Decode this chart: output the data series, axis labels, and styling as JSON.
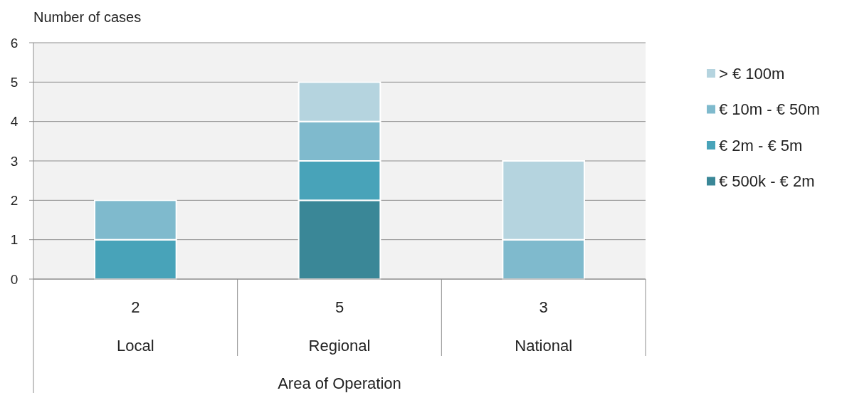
{
  "chart_data": {
    "type": "bar",
    "stacked": true,
    "ylabel": "Number of cases",
    "xlabel": "Area of Operation",
    "categories": [
      "Local",
      "Regional",
      "National"
    ],
    "series": [
      {
        "name": "€ 500k - € 2m",
        "color": "#3a8797",
        "values": [
          0,
          2,
          0
        ]
      },
      {
        "name": "€ 2m - € 5m",
        "color": "#48a3b9",
        "values": [
          1,
          1,
          0
        ]
      },
      {
        "name": "€ 10m - € 50m",
        "color": "#7fbacd",
        "values": [
          1,
          1,
          1
        ]
      },
      {
        "name": "> € 100m",
        "color": "#b5d4df",
        "values": [
          0,
          1,
          2
        ]
      }
    ],
    "totals": [
      "2",
      "5",
      "3"
    ],
    "ylim": [
      0,
      6
    ],
    "yticks": [
      0,
      1,
      2,
      3,
      4,
      5,
      6
    ],
    "grid": "y",
    "legend": "right"
  }
}
